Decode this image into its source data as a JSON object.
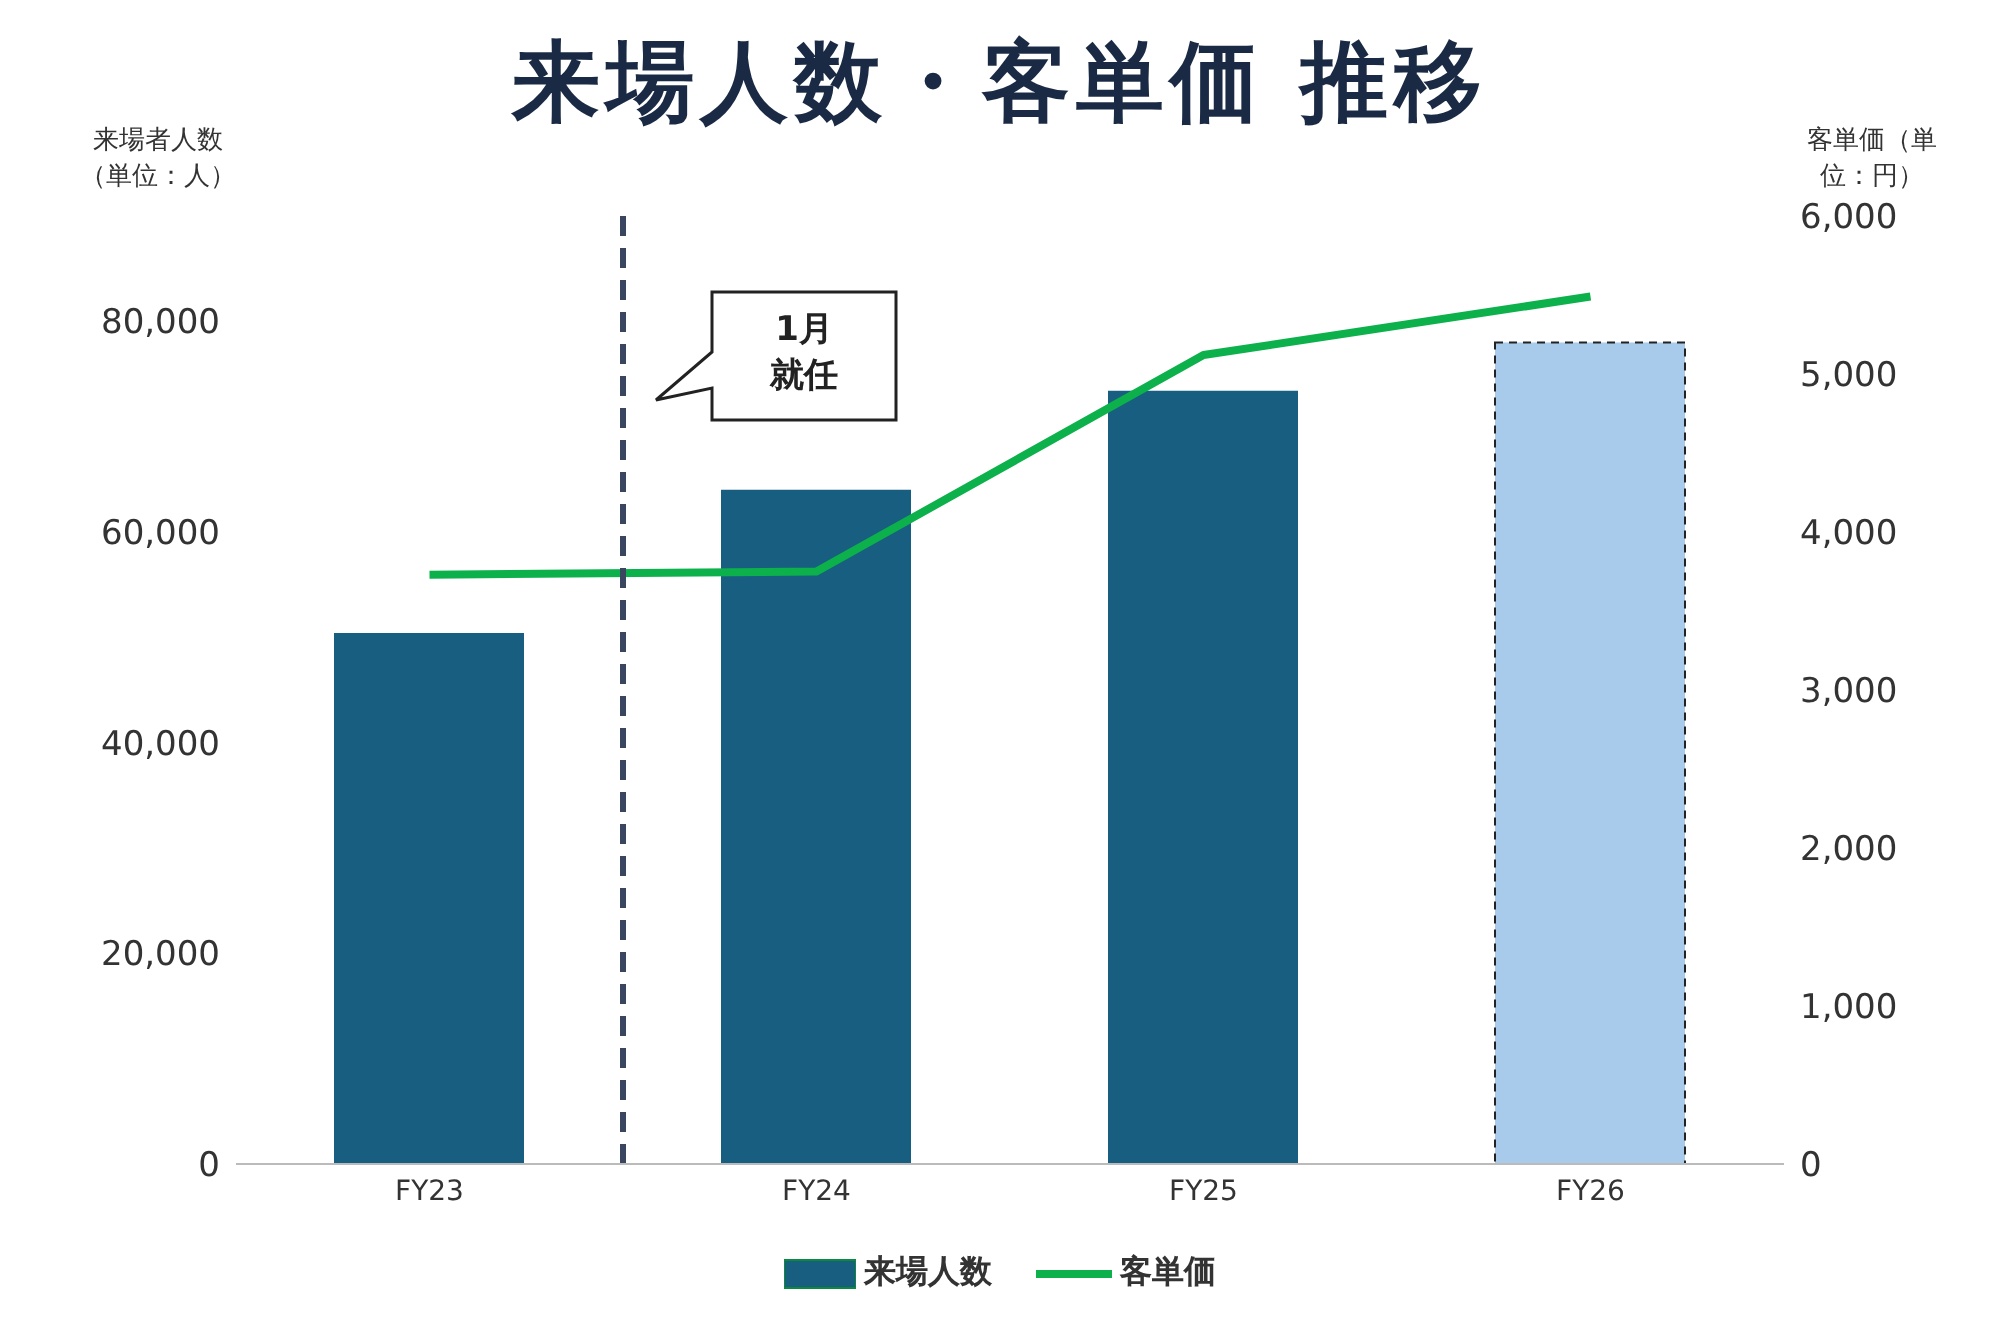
{
  "chart_data": {
    "type": "bar",
    "title": "来場人数・客単価 推移",
    "ylabel": "来場者人数（単位：人）",
    "y2label": "客単価（単位：円）",
    "categories": [
      "FY23",
      "FY24",
      "FY25",
      "FY26"
    ],
    "series": [
      {
        "name": "来場人数",
        "color": "#175e80",
        "colors": [
          "#175e80",
          "#175e80",
          "#175e80",
          "#a8caeb"
        ],
        "values": [
          50400,
          64000,
          73400,
          78000
        ]
      },
      {
        "name": "客単価",
        "type": "line",
        "axis": "y2",
        "color": "#0db14b",
        "values": [
          3730,
          3750,
          5120,
          5490
        ]
      }
    ],
    "ylim": [
      0,
      90000
    ],
    "yticks": [
      0,
      {
        "value": 20000,
        "label": "20,000"
      },
      {
        "value": 40000,
        "label": "40,000"
      },
      {
        "value": 60000,
        "label": "60,000"
      },
      {
        "value": 80000,
        "label": "80,000"
      }
    ],
    "y2lim": [
      0,
      6000
    ],
    "y2ticks": [
      0,
      {
        "value": 1000,
        "label": "1,000"
      },
      {
        "value": 2000,
        "label": "2,000"
      },
      {
        "value": 3000,
        "label": "3,000"
      },
      {
        "value": 4000,
        "label": "4,000"
      },
      {
        "value": 5000,
        "label": "5,000"
      },
      {
        "value": 6000,
        "label": "6,000"
      }
    ],
    "annotations": [
      "1月就任"
    ],
    "legend": "bottom",
    "marker": "none",
    "line_style": "solid"
  }
}
